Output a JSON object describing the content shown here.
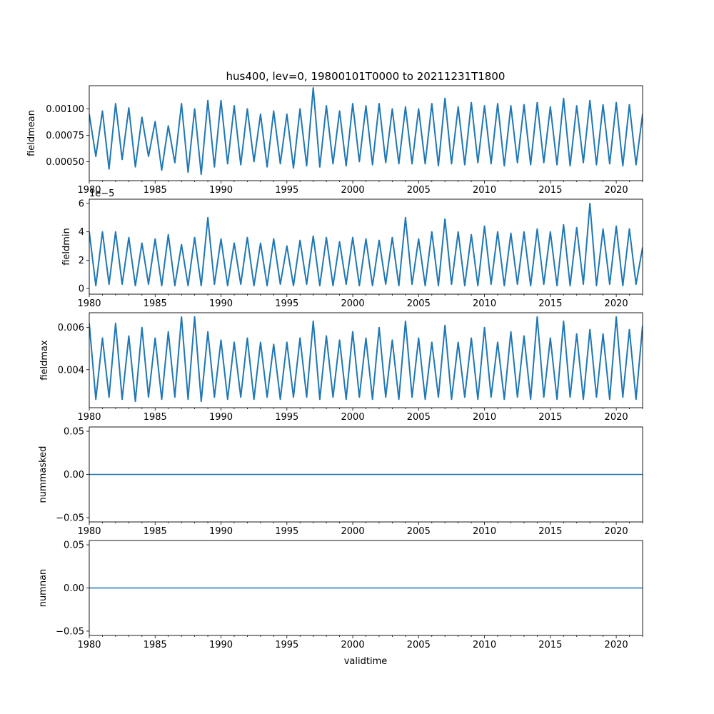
{
  "chart_data": {
    "title": "hus400, lev=0, 19800101T0000 to 20211231T1800",
    "type": "line",
    "xlabel": "validtime",
    "xlim": [
      1980,
      2022
    ],
    "xticks": [
      1980,
      1985,
      1990,
      1995,
      2000,
      2005,
      2010,
      2015,
      2020
    ],
    "xtick_labels": [
      "1980",
      "1985",
      "1990",
      "1995",
      "2000",
      "2005",
      "2010",
      "2015",
      "2020"
    ],
    "line_color": "#1f77b4",
    "panels": [
      {
        "name": "fieldmean",
        "ylabel": "fieldmean",
        "ylim": [
          0.00032,
          0.00122
        ],
        "yticks": [
          0.0005,
          0.00075,
          0.001
        ],
        "ytick_labels": [
          "0.00050",
          "0.00075",
          "0.00100"
        ],
        "offset_text": "",
        "x": [
          1980.0,
          1980.5,
          1981.0,
          1981.5,
          1982.0,
          1982.5,
          1983.0,
          1983.5,
          1984.0,
          1984.5,
          1985.0,
          1985.5,
          1986.0,
          1986.5,
          1987.0,
          1987.5,
          1988.0,
          1988.5,
          1989.0,
          1989.5,
          1990.0,
          1990.5,
          1991.0,
          1991.5,
          1992.0,
          1992.5,
          1993.0,
          1993.5,
          1994.0,
          1994.5,
          1995.0,
          1995.5,
          1996.0,
          1996.5,
          1997.0,
          1997.5,
          1998.0,
          1998.5,
          1999.0,
          1999.5,
          2000.0,
          2000.5,
          2001.0,
          2001.5,
          2002.0,
          2002.5,
          2003.0,
          2003.5,
          2004.0,
          2004.5,
          2005.0,
          2005.5,
          2006.0,
          2006.5,
          2007.0,
          2007.5,
          2008.0,
          2008.5,
          2009.0,
          2009.5,
          2010.0,
          2010.5,
          2011.0,
          2011.5,
          2012.0,
          2012.5,
          2013.0,
          2013.5,
          2014.0,
          2014.5,
          2015.0,
          2015.5,
          2016.0,
          2016.5,
          2017.0,
          2017.5,
          2018.0,
          2018.5,
          2019.0,
          2019.5,
          2020.0,
          2020.5,
          2021.0,
          2021.5,
          2022.0
        ],
        "y": [
          0.00095,
          0.00055,
          0.00098,
          0.00043,
          0.00105,
          0.00052,
          0.00101,
          0.00045,
          0.00092,
          0.00055,
          0.00088,
          0.00042,
          0.00084,
          0.00049,
          0.00105,
          0.0004,
          0.001,
          0.00038,
          0.00108,
          0.00045,
          0.00108,
          0.00048,
          0.00103,
          0.00047,
          0.001,
          0.0005,
          0.00095,
          0.00045,
          0.00098,
          0.00048,
          0.00095,
          0.00044,
          0.001,
          0.00046,
          0.0012,
          0.00045,
          0.00103,
          0.00048,
          0.00098,
          0.00046,
          0.00105,
          0.0005,
          0.00103,
          0.00047,
          0.00105,
          0.00049,
          0.001,
          0.00048,
          0.00102,
          0.00048,
          0.001,
          0.00048,
          0.00105,
          0.00046,
          0.0011,
          0.00048,
          0.00102,
          0.00047,
          0.00106,
          0.00049,
          0.00103,
          0.00048,
          0.00105,
          0.00046,
          0.00103,
          0.00049,
          0.00104,
          0.00047,
          0.00106,
          0.00049,
          0.00102,
          0.00047,
          0.0011,
          0.00046,
          0.00103,
          0.00049,
          0.00108,
          0.00047,
          0.00104,
          0.00048,
          0.00106,
          0.00046,
          0.00104,
          0.00047,
          0.00095
        ]
      },
      {
        "name": "fieldmin",
        "ylabel": "fieldmin",
        "ylim": [
          -0.4,
          6.3
        ],
        "yticks": [
          0,
          2,
          4,
          6
        ],
        "ytick_labels": [
          "0",
          "2",
          "4",
          "6"
        ],
        "offset_text": "1e−5",
        "x": [
          1980.0,
          1980.5,
          1981.0,
          1981.5,
          1982.0,
          1982.5,
          1983.0,
          1983.5,
          1984.0,
          1984.5,
          1985.0,
          1985.5,
          1986.0,
          1986.5,
          1987.0,
          1987.5,
          1988.0,
          1988.5,
          1989.0,
          1989.5,
          1990.0,
          1990.5,
          1991.0,
          1991.5,
          1992.0,
          1992.5,
          1993.0,
          1993.5,
          1994.0,
          1994.5,
          1995.0,
          1995.5,
          1996.0,
          1996.5,
          1997.0,
          1997.5,
          1998.0,
          1998.5,
          1999.0,
          1999.5,
          2000.0,
          2000.5,
          2001.0,
          2001.5,
          2002.0,
          2002.5,
          2003.0,
          2003.5,
          2004.0,
          2004.5,
          2005.0,
          2005.5,
          2006.0,
          2006.5,
          2007.0,
          2007.5,
          2008.0,
          2008.5,
          2009.0,
          2009.5,
          2010.0,
          2010.5,
          2011.0,
          2011.5,
          2012.0,
          2012.5,
          2013.0,
          2013.5,
          2014.0,
          2014.5,
          2015.0,
          2015.5,
          2016.0,
          2016.5,
          2017.0,
          2017.5,
          2018.0,
          2018.5,
          2019.0,
          2019.5,
          2020.0,
          2020.5,
          2021.0,
          2021.5,
          2022.0
        ],
        "y": [
          4.0,
          0.2,
          4.0,
          0.3,
          4.0,
          0.3,
          3.6,
          0.2,
          3.2,
          0.3,
          3.5,
          0.2,
          3.8,
          0.2,
          3.1,
          0.2,
          3.6,
          0.2,
          5.0,
          0.3,
          3.5,
          0.2,
          3.2,
          0.3,
          3.6,
          0.2,
          3.2,
          0.2,
          3.5,
          0.3,
          3.0,
          0.2,
          3.4,
          0.3,
          3.7,
          0.2,
          3.6,
          0.2,
          3.3,
          0.3,
          3.6,
          0.2,
          3.5,
          0.2,
          3.4,
          0.3,
          3.6,
          0.2,
          5.0,
          0.3,
          3.5,
          0.2,
          4.0,
          0.2,
          4.9,
          0.3,
          4.0,
          0.2,
          3.8,
          0.2,
          4.4,
          0.3,
          4.0,
          0.2,
          3.9,
          0.3,
          4.0,
          0.2,
          4.2,
          0.3,
          4.0,
          0.2,
          4.5,
          0.2,
          4.3,
          0.3,
          6.0,
          0.2,
          4.2,
          0.3,
          4.4,
          0.2,
          4.2,
          0.3,
          2.9
        ]
      },
      {
        "name": "fieldmax",
        "ylabel": "fieldmax",
        "ylim": [
          0.0022,
          0.0067
        ],
        "yticks": [
          0.004,
          0.006
        ],
        "ytick_labels": [
          "0.004",
          "0.006"
        ],
        "offset_text": "",
        "x": [
          1980.0,
          1980.5,
          1981.0,
          1981.5,
          1982.0,
          1982.5,
          1983.0,
          1983.5,
          1984.0,
          1984.5,
          1985.0,
          1985.5,
          1986.0,
          1986.5,
          1987.0,
          1987.5,
          1988.0,
          1988.5,
          1989.0,
          1989.5,
          1990.0,
          1990.5,
          1991.0,
          1991.5,
          1992.0,
          1992.5,
          1993.0,
          1993.5,
          1994.0,
          1994.5,
          1995.0,
          1995.5,
          1996.0,
          1996.5,
          1997.0,
          1997.5,
          1998.0,
          1998.5,
          1999.0,
          1999.5,
          2000.0,
          2000.5,
          2001.0,
          2001.5,
          2002.0,
          2002.5,
          2003.0,
          2003.5,
          2004.0,
          2004.5,
          2005.0,
          2005.5,
          2006.0,
          2006.5,
          2007.0,
          2007.5,
          2008.0,
          2008.5,
          2009.0,
          2009.5,
          2010.0,
          2010.5,
          2011.0,
          2011.5,
          2012.0,
          2012.5,
          2013.0,
          2013.5,
          2014.0,
          2014.5,
          2015.0,
          2015.5,
          2016.0,
          2016.5,
          2017.0,
          2017.5,
          2018.0,
          2018.5,
          2019.0,
          2019.5,
          2020.0,
          2020.5,
          2021.0,
          2021.5,
          2022.0
        ],
        "y": [
          0.0062,
          0.0026,
          0.0055,
          0.0027,
          0.0062,
          0.0026,
          0.0056,
          0.0025,
          0.006,
          0.0027,
          0.0055,
          0.0026,
          0.0058,
          0.0027,
          0.0065,
          0.0026,
          0.0065,
          0.0025,
          0.0058,
          0.0027,
          0.0054,
          0.0026,
          0.0053,
          0.0027,
          0.0055,
          0.0026,
          0.0053,
          0.0027,
          0.0052,
          0.0026,
          0.0053,
          0.0027,
          0.0055,
          0.0027,
          0.0063,
          0.0026,
          0.0056,
          0.0027,
          0.0054,
          0.0026,
          0.0058,
          0.0027,
          0.0055,
          0.0026,
          0.006,
          0.0027,
          0.0054,
          0.0026,
          0.0063,
          0.0027,
          0.0055,
          0.0026,
          0.0053,
          0.0027,
          0.0061,
          0.0026,
          0.0053,
          0.0027,
          0.0055,
          0.0026,
          0.006,
          0.0027,
          0.0053,
          0.0026,
          0.0058,
          0.0027,
          0.0056,
          0.0026,
          0.0065,
          0.0027,
          0.0055,
          0.0026,
          0.0063,
          0.0027,
          0.0057,
          0.0026,
          0.0059,
          0.0027,
          0.0057,
          0.0026,
          0.0065,
          0.0027,
          0.0059,
          0.0026,
          0.0061
        ]
      },
      {
        "name": "nummasked",
        "ylabel": "nummasked",
        "ylim": [
          -0.055,
          0.055
        ],
        "yticks": [
          -0.05,
          0.0,
          0.05
        ],
        "ytick_labels": [
          "−0.05",
          "0.00",
          "0.05"
        ],
        "offset_text": "",
        "x": [
          1980.0,
          2022.0
        ],
        "y": [
          0.0,
          0.0
        ]
      },
      {
        "name": "numnan",
        "ylabel": "numnan",
        "ylim": [
          -0.055,
          0.055
        ],
        "yticks": [
          -0.05,
          0.0,
          0.05
        ],
        "ytick_labels": [
          "−0.05",
          "0.00",
          "0.05"
        ],
        "offset_text": "",
        "x": [
          1980.0,
          2022.0
        ],
        "y": [
          0.0,
          0.0
        ]
      }
    ]
  }
}
